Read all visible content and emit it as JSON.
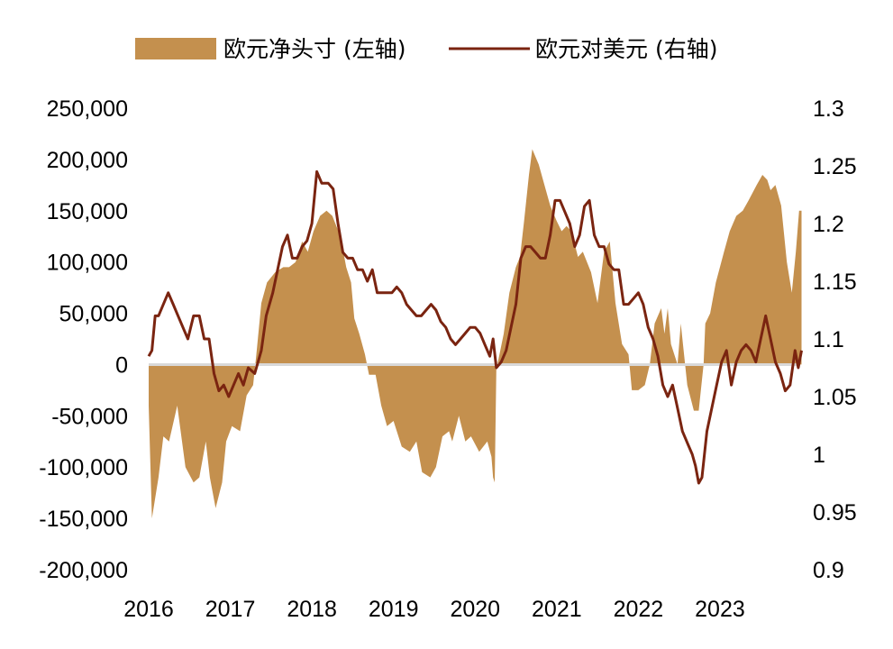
{
  "chart_data": {
    "type": "area+line",
    "title": "",
    "legend_position": "top",
    "grid": false,
    "colors": {
      "bar": "#C4904E",
      "line": "#7A2410",
      "zero_line": "#D9D9D9"
    },
    "series": [
      {
        "name": "欧元净头寸 (左轴)",
        "axis": "left",
        "type": "area",
        "points": [
          [
            2016.0,
            -40000
          ],
          [
            2016.04,
            -150000
          ],
          [
            2016.12,
            -110000
          ],
          [
            2016.18,
            -70000
          ],
          [
            2016.25,
            -75000
          ],
          [
            2016.35,
            -40000
          ],
          [
            2016.45,
            -100000
          ],
          [
            2016.55,
            -115000
          ],
          [
            2016.62,
            -110000
          ],
          [
            2016.7,
            -75000
          ],
          [
            2016.75,
            -110000
          ],
          [
            2016.82,
            -140000
          ],
          [
            2016.9,
            -115000
          ],
          [
            2016.95,
            -75000
          ],
          [
            2017.02,
            -60000
          ],
          [
            2017.12,
            -65000
          ],
          [
            2017.2,
            -30000
          ],
          [
            2017.28,
            -20000
          ],
          [
            2017.32,
            10000
          ],
          [
            2017.38,
            60000
          ],
          [
            2017.45,
            80000
          ],
          [
            2017.55,
            90000
          ],
          [
            2017.65,
            95000
          ],
          [
            2017.72,
            95000
          ],
          [
            2017.8,
            100000
          ],
          [
            2017.88,
            120000
          ],
          [
            2017.95,
            110000
          ],
          [
            2018.02,
            130000
          ],
          [
            2018.1,
            145000
          ],
          [
            2018.18,
            150000
          ],
          [
            2018.25,
            145000
          ],
          [
            2018.35,
            125000
          ],
          [
            2018.42,
            95000
          ],
          [
            2018.48,
            80000
          ],
          [
            2018.52,
            45000
          ],
          [
            2018.58,
            30000
          ],
          [
            2018.65,
            10000
          ],
          [
            2018.7,
            -10000
          ],
          [
            2018.78,
            -10000
          ],
          [
            2018.85,
            -40000
          ],
          [
            2018.92,
            -60000
          ],
          [
            2019.0,
            -55000
          ],
          [
            2019.1,
            -80000
          ],
          [
            2019.2,
            -85000
          ],
          [
            2019.28,
            -75000
          ],
          [
            2019.35,
            -105000
          ],
          [
            2019.45,
            -110000
          ],
          [
            2019.52,
            -100000
          ],
          [
            2019.6,
            -70000
          ],
          [
            2019.68,
            -65000
          ],
          [
            2019.72,
            -75000
          ],
          [
            2019.8,
            -50000
          ],
          [
            2019.88,
            -75000
          ],
          [
            2019.95,
            -70000
          ],
          [
            2020.05,
            -85000
          ],
          [
            2020.15,
            -75000
          ],
          [
            2020.2,
            -90000
          ],
          [
            2020.22,
            -110000
          ],
          [
            2020.24,
            -115000
          ],
          [
            2020.26,
            -5000
          ],
          [
            2020.35,
            30000
          ],
          [
            2020.42,
            70000
          ],
          [
            2020.5,
            95000
          ],
          [
            2020.55,
            105000
          ],
          [
            2020.6,
            140000
          ],
          [
            2020.66,
            185000
          ],
          [
            2020.7,
            210000
          ],
          [
            2020.78,
            195000
          ],
          [
            2020.85,
            175000
          ],
          [
            2020.92,
            155000
          ],
          [
            2021.0,
            140000
          ],
          [
            2021.06,
            130000
          ],
          [
            2021.12,
            135000
          ],
          [
            2021.18,
            130000
          ],
          [
            2021.26,
            105000
          ],
          [
            2021.32,
            110000
          ],
          [
            2021.42,
            90000
          ],
          [
            2021.5,
            60000
          ],
          [
            2021.58,
            110000
          ],
          [
            2021.65,
            120000
          ],
          [
            2021.72,
            60000
          ],
          [
            2021.8,
            20000
          ],
          [
            2021.88,
            10000
          ],
          [
            2021.92,
            -25000
          ],
          [
            2022.0,
            -25000
          ],
          [
            2022.08,
            -20000
          ],
          [
            2022.14,
            0
          ],
          [
            2022.2,
            40000
          ],
          [
            2022.28,
            55000
          ],
          [
            2022.32,
            30000
          ],
          [
            2022.36,
            55000
          ],
          [
            2022.4,
            20000
          ],
          [
            2022.48,
            0
          ],
          [
            2022.52,
            40000
          ],
          [
            2022.6,
            -20000
          ],
          [
            2022.68,
            -45000
          ],
          [
            2022.74,
            -45000
          ],
          [
            2022.8,
            0
          ],
          [
            2022.82,
            40000
          ],
          [
            2022.88,
            50000
          ],
          [
            2022.95,
            80000
          ],
          [
            2023.05,
            110000
          ],
          [
            2023.12,
            130000
          ],
          [
            2023.2,
            145000
          ],
          [
            2023.28,
            150000
          ],
          [
            2023.35,
            160000
          ],
          [
            2023.45,
            175000
          ],
          [
            2023.52,
            185000
          ],
          [
            2023.58,
            180000
          ],
          [
            2023.62,
            170000
          ],
          [
            2023.68,
            175000
          ],
          [
            2023.75,
            155000
          ],
          [
            2023.82,
            100000
          ],
          [
            2023.88,
            70000
          ],
          [
            2023.93,
            110000
          ],
          [
            2023.97,
            150000
          ],
          [
            2024.0,
            150000
          ]
        ]
      },
      {
        "name": "欧元对美元 (右轴)",
        "axis": "right",
        "type": "line",
        "points": [
          [
            2016.0,
            1.085
          ],
          [
            2016.04,
            1.09
          ],
          [
            2016.08,
            1.12
          ],
          [
            2016.12,
            1.12
          ],
          [
            2016.18,
            1.13
          ],
          [
            2016.24,
            1.14
          ],
          [
            2016.3,
            1.13
          ],
          [
            2016.36,
            1.12
          ],
          [
            2016.42,
            1.11
          ],
          [
            2016.48,
            1.1
          ],
          [
            2016.55,
            1.12
          ],
          [
            2016.62,
            1.12
          ],
          [
            2016.68,
            1.1
          ],
          [
            2016.74,
            1.1
          ],
          [
            2016.8,
            1.07
          ],
          [
            2016.86,
            1.055
          ],
          [
            2016.92,
            1.06
          ],
          [
            2016.98,
            1.05
          ],
          [
            2017.04,
            1.06
          ],
          [
            2017.1,
            1.07
          ],
          [
            2017.16,
            1.06
          ],
          [
            2017.22,
            1.075
          ],
          [
            2017.3,
            1.07
          ],
          [
            2017.38,
            1.09
          ],
          [
            2017.44,
            1.12
          ],
          [
            2017.52,
            1.14
          ],
          [
            2017.58,
            1.16
          ],
          [
            2017.64,
            1.18
          ],
          [
            2017.7,
            1.19
          ],
          [
            2017.76,
            1.17
          ],
          [
            2017.82,
            1.17
          ],
          [
            2017.88,
            1.18
          ],
          [
            2017.94,
            1.185
          ],
          [
            2018.0,
            1.2
          ],
          [
            2018.06,
            1.245
          ],
          [
            2018.12,
            1.235
          ],
          [
            2018.2,
            1.235
          ],
          [
            2018.26,
            1.23
          ],
          [
            2018.32,
            1.2
          ],
          [
            2018.38,
            1.175
          ],
          [
            2018.44,
            1.17
          ],
          [
            2018.5,
            1.17
          ],
          [
            2018.56,
            1.16
          ],
          [
            2018.62,
            1.16
          ],
          [
            2018.68,
            1.15
          ],
          [
            2018.74,
            1.16
          ],
          [
            2018.8,
            1.14
          ],
          [
            2018.86,
            1.14
          ],
          [
            2018.92,
            1.14
          ],
          [
            2018.98,
            1.14
          ],
          [
            2019.04,
            1.145
          ],
          [
            2019.1,
            1.14
          ],
          [
            2019.16,
            1.13
          ],
          [
            2019.22,
            1.125
          ],
          [
            2019.28,
            1.12
          ],
          [
            2019.34,
            1.12
          ],
          [
            2019.4,
            1.125
          ],
          [
            2019.46,
            1.13
          ],
          [
            2019.52,
            1.125
          ],
          [
            2019.58,
            1.115
          ],
          [
            2019.64,
            1.11
          ],
          [
            2019.7,
            1.1
          ],
          [
            2019.76,
            1.095
          ],
          [
            2019.82,
            1.1
          ],
          [
            2019.88,
            1.105
          ],
          [
            2019.94,
            1.11
          ],
          [
            2020.0,
            1.11
          ],
          [
            2020.06,
            1.105
          ],
          [
            2020.12,
            1.095
          ],
          [
            2020.18,
            1.085
          ],
          [
            2020.22,
            1.1
          ],
          [
            2020.26,
            1.075
          ],
          [
            2020.32,
            1.08
          ],
          [
            2020.38,
            1.09
          ],
          [
            2020.44,
            1.11
          ],
          [
            2020.5,
            1.13
          ],
          [
            2020.56,
            1.17
          ],
          [
            2020.62,
            1.18
          ],
          [
            2020.68,
            1.18
          ],
          [
            2020.74,
            1.175
          ],
          [
            2020.8,
            1.17
          ],
          [
            2020.86,
            1.17
          ],
          [
            2020.92,
            1.19
          ],
          [
            2020.98,
            1.22
          ],
          [
            2021.04,
            1.22
          ],
          [
            2021.1,
            1.21
          ],
          [
            2021.16,
            1.2
          ],
          [
            2021.22,
            1.18
          ],
          [
            2021.28,
            1.19
          ],
          [
            2021.34,
            1.215
          ],
          [
            2021.4,
            1.22
          ],
          [
            2021.46,
            1.19
          ],
          [
            2021.52,
            1.18
          ],
          [
            2021.58,
            1.18
          ],
          [
            2021.64,
            1.165
          ],
          [
            2021.7,
            1.16
          ],
          [
            2021.76,
            1.16
          ],
          [
            2021.82,
            1.13
          ],
          [
            2021.88,
            1.13
          ],
          [
            2021.94,
            1.135
          ],
          [
            2022.0,
            1.14
          ],
          [
            2022.06,
            1.13
          ],
          [
            2022.12,
            1.11
          ],
          [
            2022.18,
            1.1
          ],
          [
            2022.24,
            1.085
          ],
          [
            2022.3,
            1.06
          ],
          [
            2022.36,
            1.05
          ],
          [
            2022.42,
            1.06
          ],
          [
            2022.48,
            1.04
          ],
          [
            2022.54,
            1.02
          ],
          [
            2022.6,
            1.01
          ],
          [
            2022.66,
            1.0
          ],
          [
            2022.7,
            0.99
          ],
          [
            2022.74,
            0.975
          ],
          [
            2022.78,
            0.98
          ],
          [
            2022.84,
            1.02
          ],
          [
            2022.9,
            1.04
          ],
          [
            2022.96,
            1.06
          ],
          [
            2023.02,
            1.08
          ],
          [
            2023.08,
            1.09
          ],
          [
            2023.14,
            1.06
          ],
          [
            2023.2,
            1.08
          ],
          [
            2023.26,
            1.09
          ],
          [
            2023.32,
            1.095
          ],
          [
            2023.38,
            1.09
          ],
          [
            2023.44,
            1.08
          ],
          [
            2023.5,
            1.1
          ],
          [
            2023.56,
            1.12
          ],
          [
            2023.62,
            1.1
          ],
          [
            2023.68,
            1.08
          ],
          [
            2023.74,
            1.07
          ],
          [
            2023.8,
            1.055
          ],
          [
            2023.86,
            1.06
          ],
          [
            2023.92,
            1.09
          ],
          [
            2023.96,
            1.075
          ],
          [
            2024.0,
            1.09
          ]
        ]
      }
    ],
    "x_ticks": [
      "2016",
      "2017",
      "2018",
      "2019",
      "2020",
      "2021",
      "2022",
      "2023"
    ],
    "x_tick_values": [
      2016,
      2017,
      2018,
      2019,
      2020,
      2021,
      2022,
      2023
    ],
    "xlim": [
      2016,
      2023.95
    ],
    "y_left": {
      "ticks": [
        "250,000",
        "200,000",
        "150,000",
        "100,000",
        "50,000",
        "0",
        "-50,000",
        "-100,000",
        "-150,000",
        "-200,000"
      ],
      "tick_values": [
        250000,
        200000,
        150000,
        100000,
        50000,
        0,
        -50000,
        -100000,
        -150000,
        -200000
      ],
      "lim": [
        -200000,
        250000
      ]
    },
    "y_right": {
      "ticks": [
        "1.3",
        "1.25",
        "1.2",
        "1.15",
        "1.1",
        "1.05",
        "1",
        "0.95",
        "0.9"
      ],
      "tick_values": [
        1.3,
        1.25,
        1.2,
        1.15,
        1.1,
        1.05,
        1.0,
        0.95,
        0.9
      ],
      "lim": [
        0.9,
        1.3
      ]
    }
  }
}
